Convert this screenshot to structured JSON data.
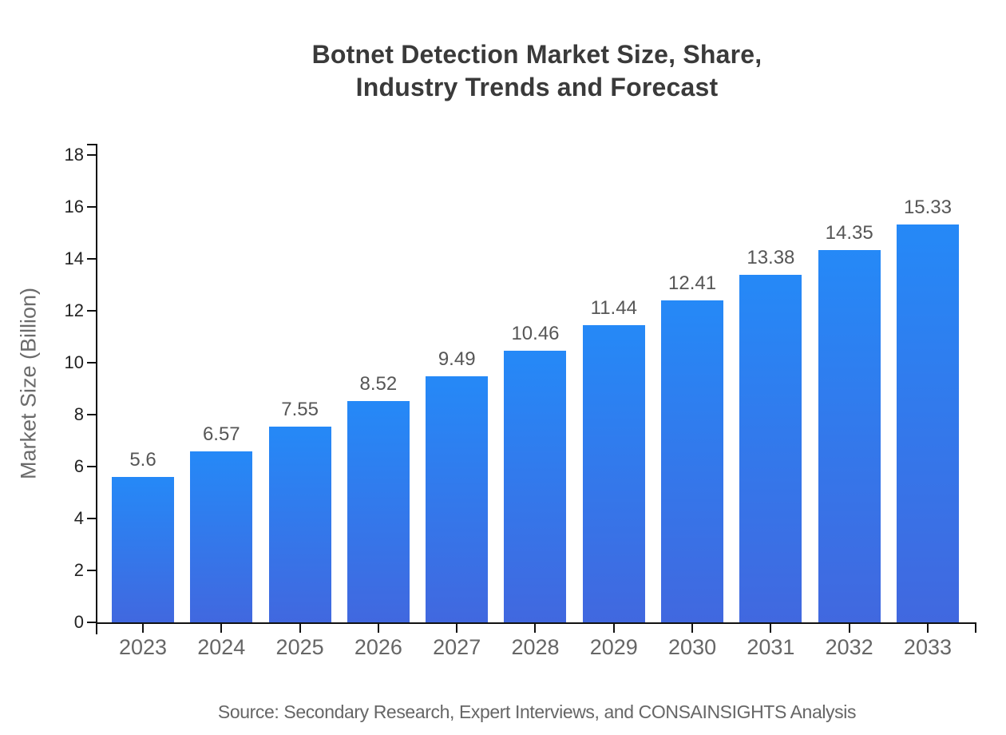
{
  "chart_data": {
    "type": "bar",
    "title": "Botnet Detection Market Size, Share,\nIndustry Trends and Forecast",
    "categories": [
      "2023",
      "2024",
      "2025",
      "2026",
      "2027",
      "2028",
      "2029",
      "2030",
      "2031",
      "2032",
      "2033"
    ],
    "values": [
      5.6,
      6.57,
      7.55,
      8.52,
      9.49,
      10.46,
      11.44,
      12.41,
      13.38,
      14.35,
      15.33
    ],
    "value_labels": [
      "5.6",
      "6.57",
      "7.55",
      "8.52",
      "9.49",
      "10.46",
      "11.44",
      "12.41",
      "13.38",
      "14.35",
      "15.33"
    ],
    "xlabel": "",
    "ylabel": "Market Size (Billion)",
    "ylim": [
      0,
      18
    ],
    "ytick_step": 2,
    "grid": false,
    "legend": "none",
    "source": "Source: Secondary Research, Expert Interviews, and CONSAINSIGHTS Analysis",
    "colors": {
      "background": "#FFFFFF",
      "bar_gradient_top": "#2589F7",
      "bar_gradient_bottom": "#4168DF",
      "axis": "#111111",
      "title": "#3A3A3A",
      "y_tick_label": "#222222",
      "category_label": "#666666",
      "value_label": "#565656",
      "axis_title": "#6B6B6B",
      "source_text": "#666666"
    }
  }
}
